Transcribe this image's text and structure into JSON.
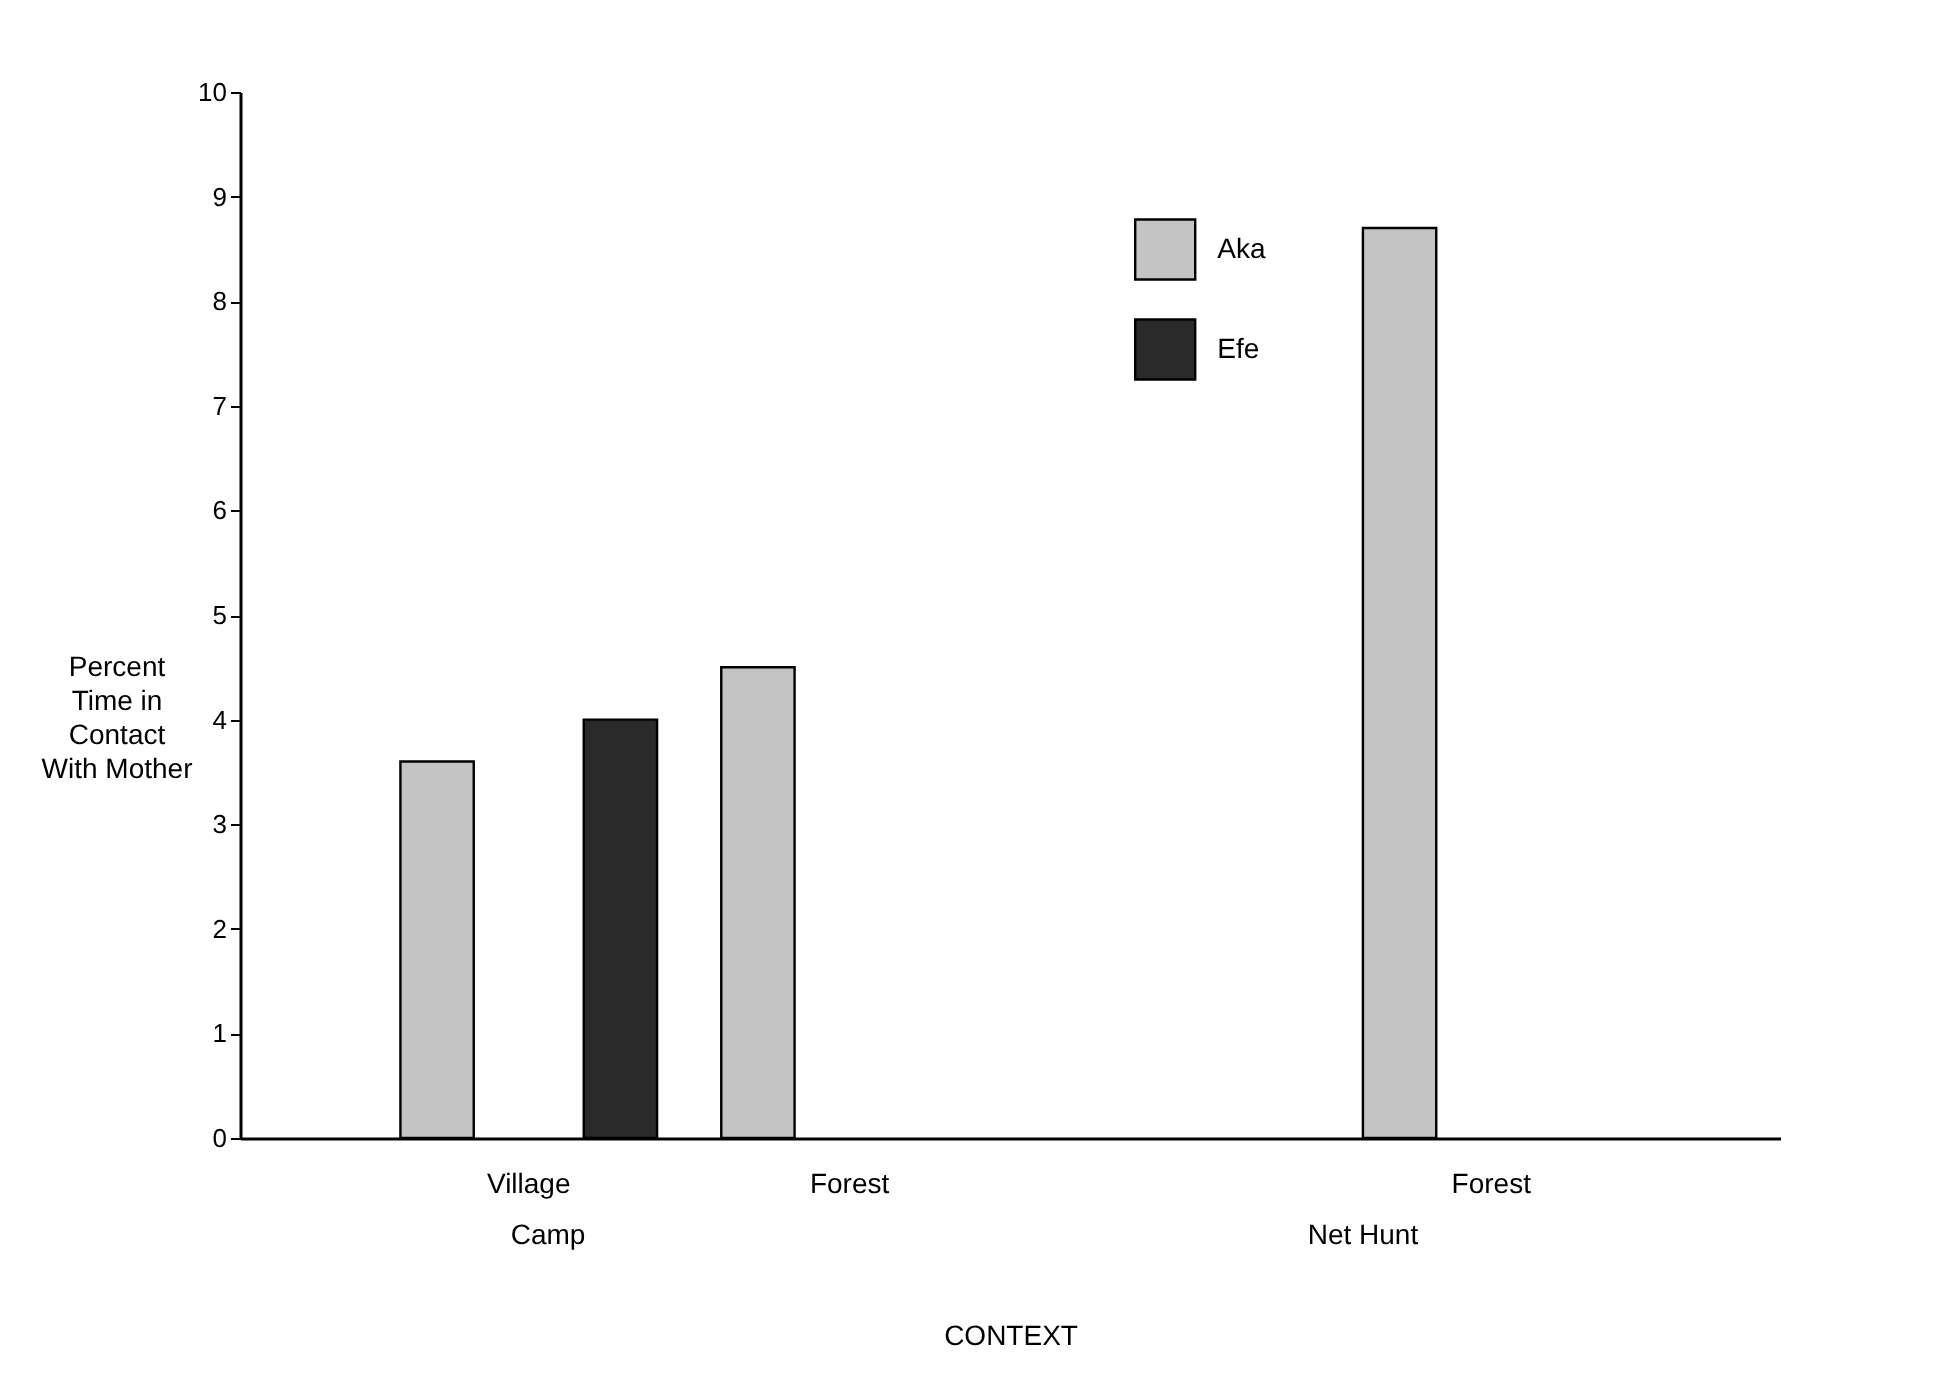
{
  "chart_data": {
    "type": "bar",
    "categories": [
      "Village",
      "Forest",
      null,
      "Forest"
    ],
    "series": [
      {
        "name": "Aka",
        "color": "#c4c4c4",
        "values": [
          3.6,
          4.5,
          null,
          8.7
        ]
      },
      {
        "name": "Efe",
        "color": "#2a2a2a",
        "values": [
          4.0,
          null,
          null,
          null
        ]
      }
    ],
    "xlabel": "CONTEXT",
    "ylabel": "Percent Time in Contact With Mother",
    "annotations": [
      "Camp",
      "Net Hunt"
    ],
    "ylim": [
      0,
      10
    ],
    "yticks": [
      0,
      1,
      2,
      3,
      4,
      5,
      6,
      7,
      8,
      9,
      10
    ],
    "grid": false,
    "legend": "top right"
  }
}
